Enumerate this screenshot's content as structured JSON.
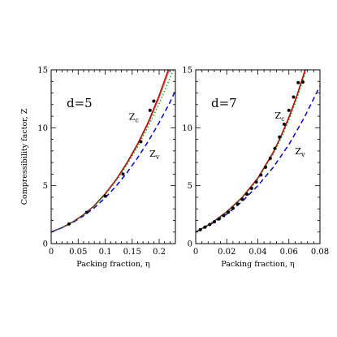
{
  "chart_data": [
    {
      "type": "line",
      "panel_label": "d=5",
      "xlabel": "Packing fraction, η",
      "ylabel": "Compressibility factor, Z",
      "xlim": [
        0,
        0.23
      ],
      "ylim": [
        0,
        15
      ],
      "xticks": [
        0,
        0.05,
        0.1,
        0.15,
        0.2
      ],
      "xtick_labels": [
        "0",
        "0.05",
        "0.1",
        "0.15",
        "0.2"
      ],
      "yticks": [
        0,
        5,
        10,
        15
      ],
      "ytick_labels": [
        "0",
        "5",
        "10",
        "15"
      ],
      "grid": false,
      "legend": "none",
      "series": [
        {
          "key": "zc",
          "style": "solid",
          "color": "#dd0000",
          "x": [
            0,
            0.02,
            0.04,
            0.06,
            0.08,
            0.1,
            0.12,
            0.14,
            0.16,
            0.18,
            0.2,
            0.21,
            0.22
          ],
          "y": [
            1.0,
            1.38,
            1.87,
            2.5,
            3.28,
            4.3,
            5.5,
            6.95,
            8.6,
            10.5,
            12.8,
            14.1,
            15.4
          ]
        },
        {
          "key": "zv",
          "style": "dashed",
          "color": "#0000dd",
          "x": [
            0,
            0.02,
            0.04,
            0.06,
            0.08,
            0.1,
            0.12,
            0.14,
            0.16,
            0.18,
            0.2,
            0.22,
            0.23
          ],
          "y": [
            1.0,
            1.37,
            1.82,
            2.4,
            3.1,
            3.95,
            4.95,
            6.1,
            7.4,
            8.85,
            10.45,
            12.2,
            13.2
          ]
        },
        {
          "key": "dotted",
          "style": "dotted",
          "color": "#00bb00",
          "x": [
            0,
            0.02,
            0.04,
            0.06,
            0.08,
            0.1,
            0.12,
            0.14,
            0.16,
            0.18,
            0.2,
            0.21,
            0.22,
            0.23
          ],
          "y": [
            1.0,
            1.38,
            1.86,
            2.48,
            3.25,
            4.22,
            5.4,
            6.78,
            8.35,
            10.15,
            12.1,
            13.2,
            14.3,
            15.4
          ]
        },
        {
          "key": "thin",
          "style": "solid-thin",
          "color": "#444444",
          "x": [
            0,
            0.02,
            0.04,
            0.06,
            0.08,
            0.1,
            0.12,
            0.14,
            0.16,
            0.18,
            0.2,
            0.21,
            0.22
          ],
          "y": [
            1.0,
            1.38,
            1.86,
            2.49,
            3.27,
            4.26,
            5.45,
            6.87,
            8.5,
            10.35,
            12.55,
            13.8,
            15.1
          ]
        },
        {
          "key": "sim",
          "style": "points",
          "color": "#000000",
          "x": [
            0.033,
            0.066,
            0.1,
            0.133,
            0.166,
            0.183,
            0.19
          ],
          "y": [
            1.7,
            2.7,
            4.1,
            6.0,
            8.8,
            11.5,
            12.3
          ]
        }
      ],
      "annotations": [
        {
          "text": "Z",
          "sub": "c",
          "x": 0.144,
          "y": 10.7
        },
        {
          "text": "Z",
          "sub": "v",
          "x": 0.182,
          "y": 7.5
        }
      ]
    },
    {
      "type": "line",
      "panel_label": "d=7",
      "xlabel": "Packing fraction, η",
      "ylabel": "",
      "xlim": [
        0,
        0.08
      ],
      "ylim": [
        0,
        15
      ],
      "xticks": [
        0,
        0.02,
        0.04,
        0.06,
        0.08
      ],
      "xtick_labels": [
        "0",
        "0.02",
        "0.04",
        "0.06",
        "0.08"
      ],
      "yticks": [
        0,
        5,
        10,
        15
      ],
      "ytick_labels": [
        "0",
        "5",
        "10",
        "15"
      ],
      "grid": false,
      "legend": "none",
      "series": [
        {
          "key": "zc",
          "style": "solid",
          "color": "#dd0000",
          "x": [
            0,
            0.01,
            0.02,
            0.03,
            0.04,
            0.05,
            0.055,
            0.06,
            0.065,
            0.07,
            0.075
          ],
          "y": [
            1.0,
            1.75,
            2.75,
            4.0,
            5.65,
            7.9,
            9.3,
            10.9,
            12.7,
            14.8,
            17.2
          ]
        },
        {
          "key": "zv",
          "style": "dashed",
          "color": "#0000dd",
          "x": [
            0,
            0.01,
            0.02,
            0.03,
            0.04,
            0.05,
            0.06,
            0.07,
            0.08
          ],
          "y": [
            1.0,
            1.7,
            2.55,
            3.65,
            5.0,
            6.6,
            8.55,
            10.9,
            13.6
          ]
        },
        {
          "key": "dotted",
          "style": "dotted",
          "color": "#00bb00",
          "x": [
            0,
            0.01,
            0.02,
            0.03,
            0.04,
            0.05,
            0.055,
            0.06,
            0.065,
            0.07,
            0.075
          ],
          "y": [
            1.0,
            1.74,
            2.72,
            3.95,
            5.55,
            7.75,
            9.1,
            10.65,
            12.45,
            14.5,
            16.8
          ]
        },
        {
          "key": "thin",
          "style": "solid-thin",
          "color": "#444444",
          "x": [
            0,
            0.01,
            0.02,
            0.03,
            0.04,
            0.05,
            0.055,
            0.06,
            0.065,
            0.07,
            0.075
          ],
          "y": [
            1.0,
            1.75,
            2.74,
            3.98,
            5.6,
            7.82,
            9.2,
            10.78,
            12.6,
            14.65,
            17.0
          ]
        },
        {
          "key": "sim",
          "style": "points",
          "color": "#000000",
          "x": [
            0.003,
            0.006,
            0.009,
            0.012,
            0.015,
            0.018,
            0.021,
            0.024,
            0.027,
            0.03,
            0.033,
            0.036,
            0.039,
            0.042,
            0.045,
            0.048,
            0.051,
            0.054,
            0.057,
            0.06,
            0.063,
            0.066,
            0.069
          ],
          "y": [
            1.2,
            1.42,
            1.65,
            1.88,
            2.13,
            2.42,
            2.72,
            3.05,
            3.42,
            3.82,
            4.27,
            4.77,
            5.32,
            5.92,
            6.6,
            7.36,
            8.22,
            9.2,
            10.3,
            11.5,
            12.65,
            13.9,
            13.95
          ]
        }
      ],
      "annotations": [
        {
          "text": "Z",
          "sub": "c",
          "x": 0.051,
          "y": 10.8
        },
        {
          "text": "Z",
          "sub": "v",
          "x": 0.064,
          "y": 7.7
        }
      ]
    }
  ]
}
